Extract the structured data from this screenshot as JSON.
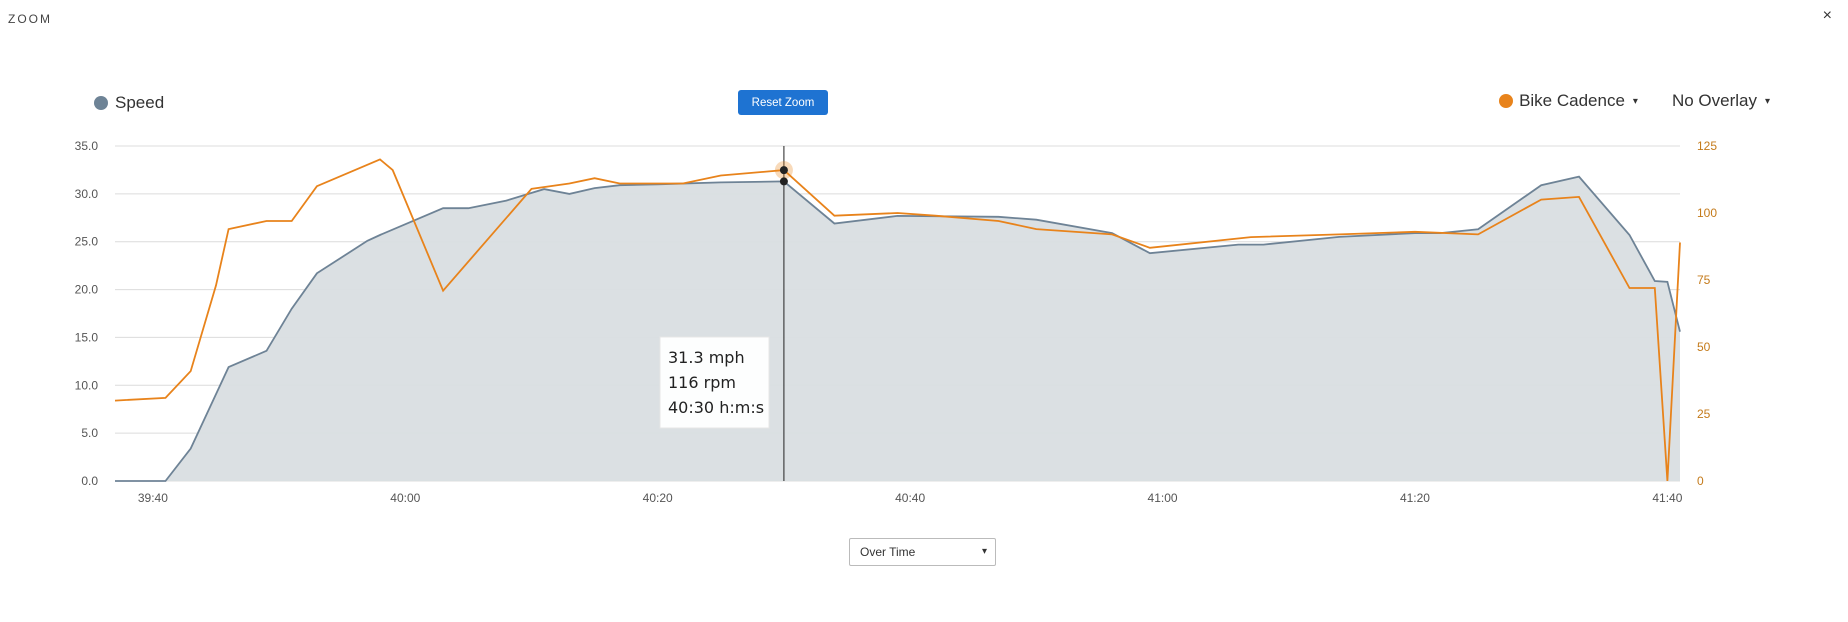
{
  "header": {
    "title": "ZOOM",
    "close_glyph": "×"
  },
  "controls": {
    "reset_zoom_label": "Reset Zoom",
    "left_series_label": "Speed",
    "right_series_label": "Bike Cadence",
    "overlay_label": "No Overlay",
    "mode_select_value": "Over Time",
    "dropdown_glyph": "▾"
  },
  "colors": {
    "speed": "#6e8396",
    "speed_fill": "#d9dee2",
    "cadence": "#e8831b",
    "grid": "#dcdcdc",
    "right_axis_text": "#c47a1a",
    "accent": "#1e73d2"
  },
  "tooltip": {
    "speed_text": "31.3 mph",
    "cadence_text": "116 rpm",
    "time_text": "40:30 h:m:s"
  },
  "chart_data": {
    "type": "line",
    "x_unit": "time (m:s)",
    "xlim": [
      "39:37",
      "41:41"
    ],
    "x_ticks": [
      "39:40",
      "40:00",
      "40:20",
      "40:40",
      "41:00",
      "41:20",
      "41:40"
    ],
    "y_left": {
      "ylim": [
        0,
        35
      ],
      "ticks": [
        "0.0",
        "5.0",
        "10.0",
        "15.0",
        "20.0",
        "25.0",
        "30.0",
        "35.0"
      ]
    },
    "y_right": {
      "ylim": [
        0,
        125
      ],
      "ticks": [
        "0",
        "25",
        "50",
        "75",
        "100",
        "125"
      ]
    },
    "grid": true,
    "crosshair_x": "40:30",
    "series": [
      {
        "name": "Speed",
        "axis": "left",
        "style": "area",
        "points": [
          [
            "39:37",
            0.0
          ],
          [
            "39:41",
            0.0
          ],
          [
            "39:43",
            3.4
          ],
          [
            "39:46",
            11.9
          ],
          [
            "39:49",
            13.6
          ],
          [
            "39:51",
            18.0
          ],
          [
            "39:53",
            21.7
          ],
          [
            "39:57",
            25.1
          ],
          [
            "39:58",
            25.7
          ],
          [
            "40:03",
            28.5
          ],
          [
            "40:05",
            28.5
          ],
          [
            "40:08",
            29.3
          ],
          [
            "40:11",
            30.5
          ],
          [
            "40:13",
            30.0
          ],
          [
            "40:15",
            30.6
          ],
          [
            "40:17",
            30.9
          ],
          [
            "40:20",
            31.0
          ],
          [
            "40:25",
            31.2
          ],
          [
            "40:30",
            31.3
          ],
          [
            "40:34",
            26.9
          ],
          [
            "40:39",
            27.7
          ],
          [
            "40:47",
            27.6
          ],
          [
            "40:50",
            27.3
          ],
          [
            "40:56",
            25.9
          ],
          [
            "40:59",
            23.8
          ],
          [
            "41:06",
            24.7
          ],
          [
            "41:08",
            24.7
          ],
          [
            "41:14",
            25.5
          ],
          [
            "41:20",
            25.9
          ],
          [
            "41:22",
            25.9
          ],
          [
            "41:25",
            26.3
          ],
          [
            "41:30",
            30.9
          ],
          [
            "41:33",
            31.8
          ],
          [
            "41:37",
            25.7
          ],
          [
            "41:39",
            20.9
          ],
          [
            "41:40",
            20.8
          ],
          [
            "41:41",
            15.6
          ]
        ]
      },
      {
        "name": "Bike Cadence",
        "axis": "right",
        "style": "line",
        "points": [
          [
            "39:37",
            30
          ],
          [
            "39:41",
            31
          ],
          [
            "39:43",
            41
          ],
          [
            "39:45",
            73
          ],
          [
            "39:46",
            94
          ],
          [
            "39:49",
            97
          ],
          [
            "39:51",
            97
          ],
          [
            "39:53",
            110
          ],
          [
            "39:58",
            120
          ],
          [
            "39:59",
            116
          ],
          [
            "40:03",
            71
          ],
          [
            "40:10",
            109
          ],
          [
            "40:13",
            111
          ],
          [
            "40:15",
            113
          ],
          [
            "40:17",
            111
          ],
          [
            "40:22",
            111
          ],
          [
            "40:25",
            114
          ],
          [
            "40:30",
            116
          ],
          [
            "40:34",
            99
          ],
          [
            "40:39",
            100
          ],
          [
            "40:42",
            99
          ],
          [
            "40:47",
            97
          ],
          [
            "40:50",
            94
          ],
          [
            "40:56",
            92
          ],
          [
            "40:59",
            87
          ],
          [
            "41:07",
            91
          ],
          [
            "41:14",
            92
          ],
          [
            "41:20",
            93
          ],
          [
            "41:25",
            92
          ],
          [
            "41:30",
            105
          ],
          [
            "41:33",
            106
          ],
          [
            "41:37",
            72
          ],
          [
            "41:39",
            72
          ],
          [
            "41:40",
            0
          ],
          [
            "41:41",
            89
          ]
        ]
      }
    ]
  }
}
